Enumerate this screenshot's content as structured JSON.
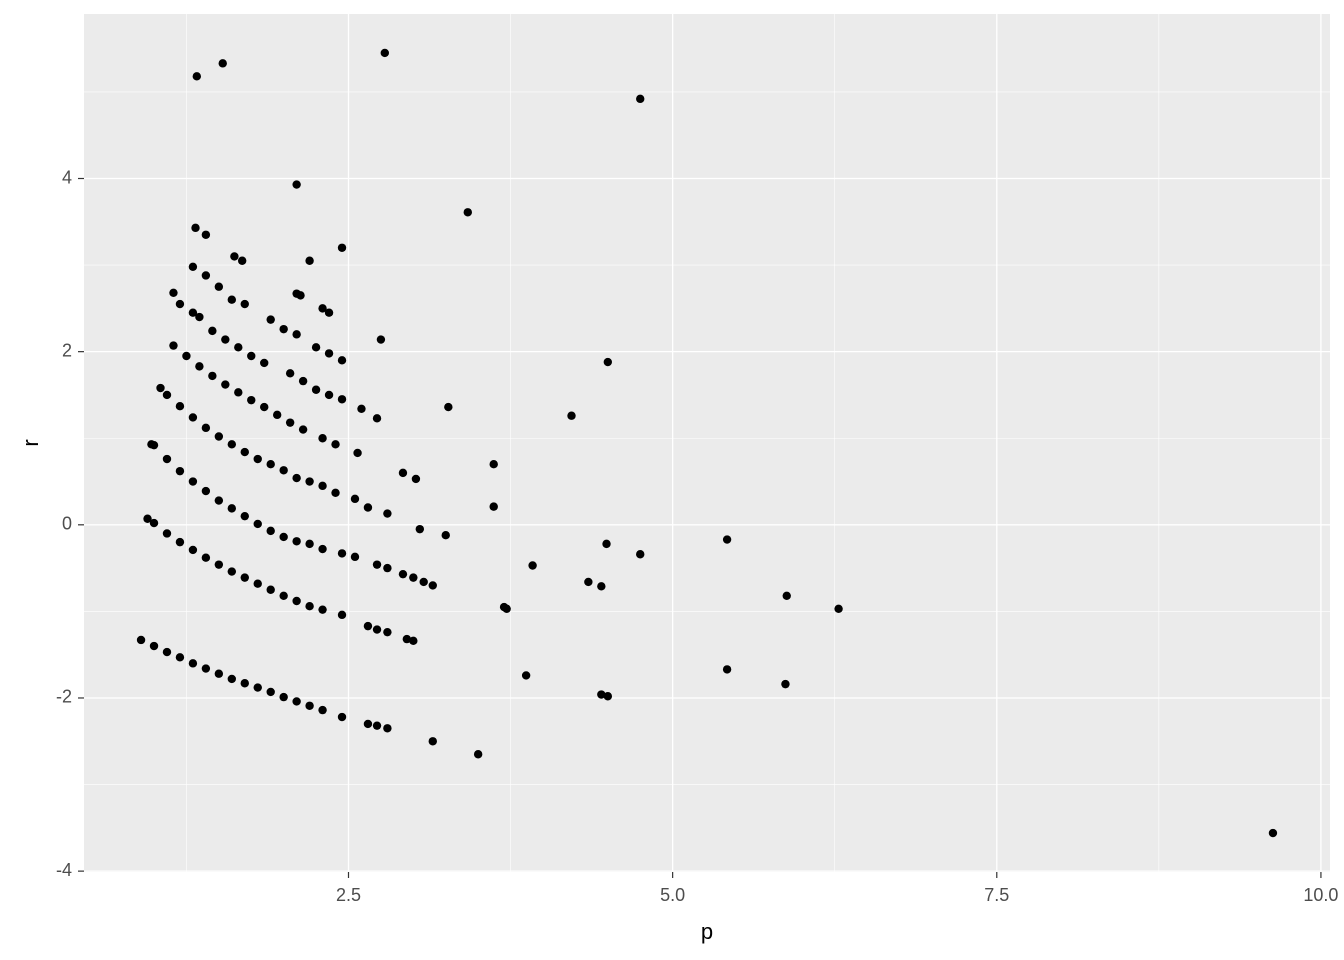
{
  "chart_data": {
    "type": "scatter",
    "x_label": "p",
    "y_label": "r",
    "color": "#000000",
    "grid": true,
    "xlim": [
      0.46,
      10.07
    ],
    "ylim": [
      -4.01,
      5.9
    ],
    "xticks": [
      {
        "value": 2.5,
        "label": "2.5"
      },
      {
        "value": 5,
        "label": "5.0"
      },
      {
        "value": 7.5,
        "label": "7.5"
      },
      {
        "value": 10,
        "label": "10.0"
      }
    ],
    "yticks": [
      -4,
      -2,
      0,
      2,
      4
    ],
    "x": [
      0.9,
      1.0,
      1.1,
      1.2,
      1.3,
      1.4,
      1.5,
      1.6,
      1.7,
      1.8,
      1.9,
      2.0,
      2.1,
      2.2,
      2.3,
      2.45,
      2.65,
      2.72,
      2.8,
      3.15,
      3.5,
      0.95,
      1.0,
      1.1,
      1.2,
      1.3,
      1.4,
      1.5,
      1.6,
      1.7,
      1.8,
      1.9,
      2.0,
      2.1,
      2.2,
      2.3,
      2.45,
      2.65,
      2.72,
      2.8,
      2.95,
      3.0,
      1.1,
      1.2,
      1.3,
      1.4,
      1.5,
      1.6,
      1.7,
      1.8,
      1.9,
      2.0,
      2.1,
      2.2,
      2.3,
      2.45,
      2.55,
      2.72,
      2.8,
      2.92,
      3.0,
      3.08,
      3.15,
      1.0,
      0.98,
      1.1,
      1.2,
      1.3,
      1.4,
      1.5,
      1.6,
      1.7,
      1.8,
      1.9,
      2.0,
      2.1,
      2.2,
      2.3,
      2.4,
      2.55,
      2.65,
      2.8,
      3.05,
      3.25,
      1.05,
      1.15,
      1.25,
      1.35,
      1.45,
      1.55,
      1.65,
      1.75,
      1.85,
      1.95,
      2.05,
      2.15,
      2.3,
      2.4,
      2.57,
      1.2,
      1.3,
      1.35,
      1.45,
      1.55,
      1.65,
      1.75,
      1.85,
      2.05,
      2.15,
      2.25,
      2.35,
      2.45,
      2.6,
      2.72,
      1.3,
      1.4,
      1.5,
      1.6,
      1.7,
      1.9,
      2.0,
      2.1,
      2.25,
      2.35,
      2.45,
      1.15,
      2.1,
      2.13,
      2.3,
      2.35,
      1.32,
      1.4,
      1.62,
      1.68,
      2.2,
      2.45,
      2.1,
      1.33,
      1.53,
      2.78,
      4.75,
      3.42,
      2.75,
      4.5,
      3.27,
      4.22,
      3.62,
      2.92,
      3.02,
      3.62,
      4.49,
      4.75,
      5.42,
      3.92,
      4.35,
      4.45,
      3.7,
      3.72,
      5.88,
      6.28,
      3.87,
      5.42,
      5.87,
      4.45,
      4.5,
      9.63
    ],
    "values": [
      -1.33,
      -1.4,
      -1.47,
      -1.53,
      -1.6,
      -1.66,
      -1.72,
      -1.78,
      -1.83,
      -1.88,
      -1.93,
      -1.99,
      -2.04,
      -2.09,
      -2.14,
      -2.22,
      -2.3,
      -2.32,
      -2.35,
      -2.5,
      -2.65,
      0.07,
      0.02,
      -0.1,
      -0.2,
      -0.29,
      -0.38,
      -0.46,
      -0.54,
      -0.61,
      -0.68,
      -0.75,
      -0.82,
      -0.88,
      -0.94,
      -0.98,
      -1.04,
      -1.17,
      -1.21,
      -1.24,
      -1.32,
      -1.34,
      0.76,
      0.62,
      0.5,
      0.39,
      0.28,
      0.19,
      0.1,
      0.01,
      -0.07,
      -0.14,
      -0.19,
      -0.22,
      -0.28,
      -0.33,
      -0.37,
      -0.46,
      -0.5,
      -0.57,
      -0.61,
      -0.66,
      -0.7,
      0.92,
      0.93,
      1.5,
      1.37,
      1.24,
      1.12,
      1.02,
      0.93,
      0.84,
      0.76,
      0.7,
      0.63,
      0.54,
      0.5,
      0.45,
      0.37,
      0.3,
      0.2,
      0.13,
      -0.05,
      -0.12,
      1.58,
      2.07,
      1.95,
      1.83,
      1.72,
      1.62,
      1.53,
      1.44,
      1.36,
      1.27,
      1.18,
      1.1,
      1.0,
      0.93,
      0.83,
      2.55,
      2.45,
      2.4,
      2.24,
      2.14,
      2.05,
      1.95,
      1.87,
      1.75,
      1.66,
      1.56,
      1.5,
      1.45,
      1.34,
      1.23,
      2.98,
      2.88,
      2.75,
      2.6,
      2.55,
      2.37,
      2.26,
      2.2,
      2.05,
      1.98,
      1.9,
      2.68,
      2.67,
      2.65,
      2.5,
      2.45,
      3.43,
      3.35,
      3.1,
      3.05,
      3.05,
      3.2,
      3.93,
      5.18,
      5.33,
      5.45,
      4.92,
      3.61,
      2.14,
      1.88,
      1.36,
      1.26,
      0.7,
      0.6,
      0.53,
      0.21,
      -0.22,
      -0.34,
      -0.17,
      -0.47,
      -0.66,
      -0.71,
      -0.95,
      -0.97,
      -0.82,
      -0.97,
      -1.74,
      -1.67,
      -1.84,
      -1.96,
      -1.98,
      -3.56
    ]
  }
}
